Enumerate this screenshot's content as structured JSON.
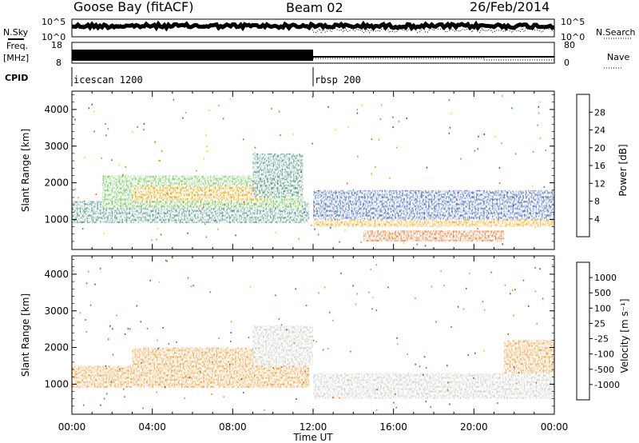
{
  "header": {
    "station": "Goose Bay (fitACF)",
    "beam": "Beam 02",
    "date": "26/Feb/2014"
  },
  "status_panels": {
    "nsky_label": "N.Sky",
    "nsky_ticks": [
      "10^5",
      "10^0"
    ],
    "nsearch_label": "N.Search",
    "nsearch_ticks": [
      "10^5",
      "10^0"
    ],
    "freq_label": "Freq.",
    "freq_unit": "[MHz]",
    "freq_ticks": [
      "18",
      "8"
    ],
    "nave_label": "Nave",
    "nave_ticks": [
      "80",
      "0"
    ],
    "cpid_label": "CPID",
    "cpid_modes": [
      {
        "name": "icescan 1200",
        "start_hour": 0,
        "end_hour": 12
      },
      {
        "name": "rbsp 200",
        "start_hour": 12,
        "end_hour": 24
      }
    ]
  },
  "chart_data": [
    {
      "type": "heatmap",
      "title": "",
      "quantity": "Power",
      "colorbar_label": "Power [dB]",
      "colorbar_ticks": [
        "4",
        "8",
        "12",
        "16",
        "20",
        "24",
        "28"
      ],
      "colorbar_values": [
        4,
        8,
        12,
        16,
        20,
        24,
        28
      ],
      "colorbar_colors": [
        "#1a1aff",
        "#2c56b8",
        "#3c8a7a",
        "#62c040",
        "#f0e000",
        "#f5a000",
        "#f06010",
        "#ff0000"
      ],
      "ylabel": "Slant Range [km]",
      "yticks": [
        "1000",
        "2000",
        "3000",
        "4000"
      ],
      "ylim": [
        180,
        4500
      ],
      "xlim": [
        0,
        24
      ],
      "regions": [
        {
          "t0": 0.0,
          "t1": 11.8,
          "r0": 900,
          "r1": 1500,
          "value": 10
        },
        {
          "t0": 1.5,
          "t1": 11.5,
          "r0": 1300,
          "r1": 2200,
          "value": 14
        },
        {
          "t0": 3.0,
          "t1": 9.5,
          "r0": 1500,
          "r1": 1900,
          "value": 20
        },
        {
          "t0": 9.0,
          "t1": 11.5,
          "r0": 1600,
          "r1": 2800,
          "value": 9
        },
        {
          "t0": 12.0,
          "t1": 24.0,
          "r0": 800,
          "r1": 1000,
          "value": 22
        },
        {
          "t0": 12.0,
          "t1": 24.0,
          "r0": 1000,
          "r1": 1800,
          "value": 6
        },
        {
          "t0": 14.5,
          "t1": 21.5,
          "r0": 400,
          "r1": 700,
          "value": 27
        }
      ]
    },
    {
      "type": "heatmap",
      "title": "",
      "quantity": "Velocity",
      "colorbar_label": "Velocity [m s⁻¹]",
      "colorbar_ticks": [
        "1000",
        "500",
        "100",
        "25",
        "-25",
        "-100",
        "-500",
        "-1000"
      ],
      "colorbar_values": [
        1000,
        500,
        100,
        25,
        -25,
        -100,
        -500,
        -1000
      ],
      "colorbar_colors": [
        "#1a3fd0",
        "#2f6f90",
        "#3f9f50",
        "#7ad040",
        "#c8c8c0",
        "#f5c030",
        "#f59020",
        "#f05020",
        "#ff1010"
      ],
      "ylabel": "Slant Range [km]",
      "yticks": [
        "1000",
        "2000",
        "3000",
        "4000"
      ],
      "ylim": [
        180,
        4500
      ],
      "xlim": [
        0,
        24
      ],
      "xlabel": "Time UT",
      "xticks": [
        "00:00",
        "04:00",
        "08:00",
        "12:00",
        "16:00",
        "20:00",
        "00:00"
      ],
      "regions": [
        {
          "t0": 0.0,
          "t1": 11.8,
          "r0": 900,
          "r1": 1500,
          "value": -150
        },
        {
          "t0": 3.0,
          "t1": 9.5,
          "r0": 1500,
          "r1": 2000,
          "value": -300
        },
        {
          "t0": 9.0,
          "t1": 12.0,
          "r0": 1500,
          "r1": 2600,
          "value": 0
        },
        {
          "t0": 12.0,
          "t1": 24.0,
          "r0": 600,
          "r1": 1300,
          "value": 0
        },
        {
          "t0": 21.5,
          "t1": 24.0,
          "r0": 1300,
          "r1": 2200,
          "value": -200
        }
      ]
    }
  ]
}
